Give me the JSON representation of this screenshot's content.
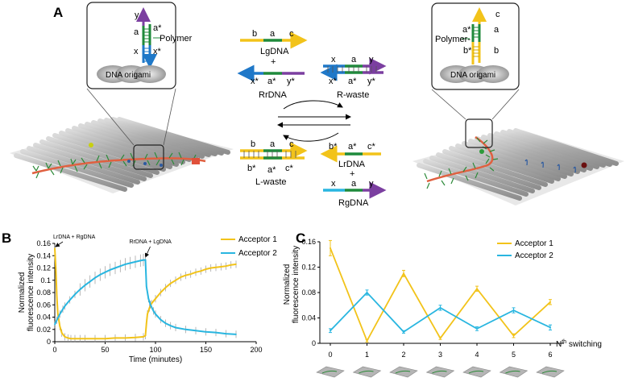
{
  "panels": {
    "a": "A",
    "b": "B",
    "c": "C"
  },
  "colors": {
    "yellow": "#f2c31a",
    "green": "#1f8a3b",
    "purple": "#7b3fa0",
    "blue": "#1f78c8",
    "cyan": "#29b6e0",
    "acceptor1": "#f2c31a",
    "acceptor2": "#29b6e0"
  },
  "panel_a": {
    "left_zoom": {
      "y": "y",
      "a": "a",
      "a_star": "a*",
      "x": "x",
      "x_star": "x*",
      "polymer": "Polymer",
      "origami": "DNA origami"
    },
    "right_zoom": {
      "c": "c",
      "a": "a",
      "a_star": "a*",
      "b": "b",
      "b_star": "b*",
      "polymer": "Polymer-",
      "origami": "DNA origami"
    },
    "lgdna": {
      "b": "b",
      "a": "a",
      "c": "c",
      "name": "LgDNA",
      "plus": "+"
    },
    "rrdna": {
      "x_star": "x*",
      "a_star": "a*",
      "y_star": "y*",
      "name": "RrDNA"
    },
    "rwaste": {
      "x": "x",
      "a": "a",
      "y": "y",
      "x_star": "x*",
      "a_star": "a*",
      "y_star": "y*",
      "name": "R-waste"
    },
    "lwaste": {
      "b": "b",
      "a": "a",
      "c": "c",
      "b_star": "b*",
      "a_star": "a*",
      "c_star": "c*",
      "name": "L-waste"
    },
    "lrdna": {
      "b_star": "b*",
      "a_star": "a*",
      "c_star": "c*",
      "name": "LrDNA",
      "plus": "+"
    },
    "rgdna": {
      "x": "x",
      "a": "a",
      "y": "y",
      "name": "RgDNA"
    }
  },
  "chart_data": [
    {
      "type": "line",
      "panel": "B",
      "xlabel": "Time (minutes)",
      "ylabel": "Normalized fluorescence intensity",
      "ylabel_lines": [
        "Normalized",
        "fluorescence intensity"
      ],
      "xlim": [
        0,
        200
      ],
      "ylim": [
        0,
        0.16
      ],
      "xticks": [
        "0",
        "50",
        "100",
        "150",
        "200"
      ],
      "xtick_values": [
        0,
        50,
        100,
        150,
        200
      ],
      "yticks": [
        "0",
        "0.02",
        "0.04",
        "0.06",
        "0.08",
        "0.1",
        "0.12",
        "0.14",
        "0.16"
      ],
      "ytick_values": [
        0,
        0.02,
        0.04,
        0.06,
        0.08,
        0.1,
        0.12,
        0.14,
        0.16
      ],
      "annotations": [
        {
          "text": "LrDNA + RgDNA",
          "x": 0,
          "y": 0.155
        },
        {
          "text": "RrDNA + LgDNA",
          "x": 90,
          "y": 0.135
        }
      ],
      "series": [
        {
          "name": "Acceptor 1",
          "color": "#f2c31a",
          "x": [
            0,
            1,
            2,
            3,
            5,
            7,
            10,
            13,
            16,
            20,
            25,
            30,
            40,
            50,
            60,
            70,
            80,
            88,
            90,
            91,
            92,
            94,
            96,
            100,
            105,
            110,
            115,
            120,
            125,
            130,
            135,
            140,
            145,
            150,
            155,
            160,
            165,
            170,
            175,
            180
          ],
          "y": [
            0.152,
            0.12,
            0.075,
            0.045,
            0.025,
            0.014,
            0.008,
            0.006,
            0.005,
            0.005,
            0.005,
            0.005,
            0.005,
            0.005,
            0.006,
            0.006,
            0.007,
            0.008,
            0.01,
            0.03,
            0.045,
            0.055,
            0.062,
            0.07,
            0.08,
            0.088,
            0.095,
            0.1,
            0.105,
            0.108,
            0.11,
            0.113,
            0.115,
            0.118,
            0.12,
            0.121,
            0.122,
            0.123,
            0.125,
            0.126
          ]
        },
        {
          "name": "Acceptor 2",
          "color": "#29b6e0",
          "x": [
            0,
            2,
            5,
            8,
            10,
            15,
            20,
            25,
            30,
            35,
            40,
            45,
            50,
            55,
            60,
            65,
            70,
            75,
            80,
            85,
            88,
            90,
            91,
            93,
            95,
            98,
            100,
            105,
            110,
            115,
            120,
            130,
            140,
            150,
            160,
            170,
            180
          ],
          "y": [
            0.028,
            0.035,
            0.045,
            0.053,
            0.058,
            0.068,
            0.077,
            0.085,
            0.092,
            0.098,
            0.104,
            0.109,
            0.113,
            0.117,
            0.12,
            0.123,
            0.126,
            0.128,
            0.13,
            0.132,
            0.133,
            0.133,
            0.09,
            0.07,
            0.06,
            0.05,
            0.045,
            0.036,
            0.03,
            0.026,
            0.023,
            0.02,
            0.018,
            0.016,
            0.015,
            0.013,
            0.012
          ]
        }
      ]
    },
    {
      "type": "line",
      "panel": "C",
      "xlabel": "N",
      "xlabel_sup": "th",
      "xlabel_rest": " switching",
      "ylabel": "Normalized fluorescence intensity",
      "ylabel_lines": [
        "Normalized",
        "fluorescence intensity"
      ],
      "xlim": [
        0,
        6
      ],
      "ylim": [
        0,
        0.16
      ],
      "xticks": [
        "0",
        "1",
        "2",
        "3",
        "4",
        "5",
        "6"
      ],
      "xtick_values": [
        0,
        1,
        2,
        3,
        4,
        5,
        6
      ],
      "yticks": [
        "0",
        "0.04",
        "0.08",
        "0.12",
        "0.16"
      ],
      "ytick_values": [
        0,
        0.04,
        0.08,
        0.12,
        0.16
      ],
      "series": [
        {
          "name": "Acceptor 1",
          "color": "#f2c31a",
          "x": [
            0,
            1,
            2,
            3,
            4,
            5,
            6
          ],
          "y": [
            0.15,
            0.004,
            0.11,
            0.008,
            0.086,
            0.012,
            0.065
          ],
          "err": [
            0.012,
            0.002,
            0.005,
            0.002,
            0.004,
            0.003,
            0.004
          ]
        },
        {
          "name": "Acceptor 2",
          "color": "#29b6e0",
          "x": [
            0,
            1,
            2,
            3,
            4,
            5,
            6
          ],
          "y": [
            0.02,
            0.08,
            0.018,
            0.056,
            0.023,
            0.052,
            0.025
          ],
          "err": [
            0.003,
            0.004,
            0.002,
            0.004,
            0.003,
            0.004,
            0.004
          ]
        }
      ]
    }
  ]
}
